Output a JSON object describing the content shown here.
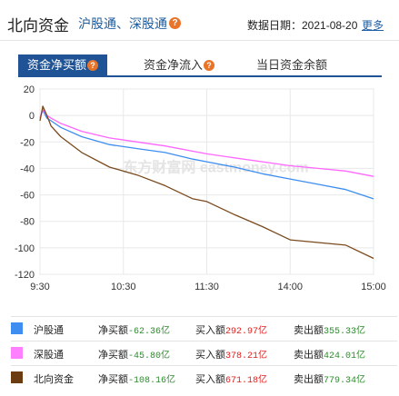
{
  "header": {
    "title": "北向资金",
    "subtitle": "沪股通、深股通",
    "date_label": "数据日期：2021-08-20",
    "more_label": "更多"
  },
  "tabs": [
    {
      "label": "资金净买额",
      "active": true
    },
    {
      "label": "资金净流入",
      "active": false
    },
    {
      "label": "当日资金余额",
      "active": false
    }
  ],
  "chart_data": {
    "type": "line",
    "xlabel": "",
    "ylabel": "",
    "x_ticks": [
      "9:30",
      "10:30",
      "11:30",
      "14:00",
      "15:00"
    ],
    "y_ticks": [
      20,
      0,
      -20,
      -40,
      -60,
      -80,
      -100,
      -120
    ],
    "ylim": [
      -120,
      20
    ],
    "grid": true,
    "series": [
      {
        "name": "沪股通",
        "color": "#3d8ef0",
        "end_value": -62.36,
        "x": [
          0,
          2,
          5,
          8,
          15,
          30,
          50,
          70,
          90,
          110,
          120,
          140,
          160,
          180,
          200,
          220,
          240
        ],
        "values": [
          -2,
          4,
          -2,
          -4,
          -9,
          -16,
          -22,
          -25,
          -28,
          -33,
          -35,
          -39,
          -44,
          -48,
          -52,
          -56,
          -63
        ]
      },
      {
        "name": "深股通",
        "color": "#ff66ff",
        "end_value": -45.8,
        "x": [
          0,
          2,
          5,
          8,
          15,
          30,
          50,
          70,
          90,
          110,
          120,
          140,
          160,
          180,
          200,
          220,
          240
        ],
        "values": [
          -2,
          5,
          0,
          -2,
          -6,
          -12,
          -17,
          -20,
          -23,
          -27,
          -29,
          -32,
          -35,
          -38,
          -40,
          -42,
          -46
        ]
      },
      {
        "name": "北向资金",
        "color": "#7a4a1e",
        "end_value": -108.16,
        "x": [
          0,
          2,
          5,
          8,
          15,
          30,
          50,
          70,
          90,
          110,
          120,
          140,
          160,
          180,
          200,
          220,
          240
        ],
        "values": [
          -4,
          7,
          0,
          -8,
          -16,
          -28,
          -39,
          -45,
          -53,
          -63,
          -65,
          -75,
          -84,
          -94,
          -96,
          -98,
          -108
        ]
      }
    ]
  },
  "watermark": "东方财富网 eastmoney.com",
  "legend": [
    {
      "name": "沪股通",
      "color": "#3d8ef0",
      "net_label": "净买额",
      "net_value": "-62.36亿",
      "buy_label": "买入额",
      "buy_value": "292.97亿",
      "sell_label": "卖出额",
      "sell_value": "355.33亿"
    },
    {
      "name": "深股通",
      "color": "#ff80ff",
      "net_label": "净买额",
      "net_value": "-45.80亿",
      "buy_label": "买入额",
      "buy_value": "378.21亿",
      "sell_label": "卖出额",
      "sell_value": "424.01亿"
    },
    {
      "name": "北向资金",
      "color": "#6b3b12",
      "net_label": "净买额",
      "net_value": "-108.16亿",
      "buy_label": "买入额",
      "buy_value": "671.18亿",
      "sell_label": "卖出额",
      "sell_value": "779.34亿"
    }
  ]
}
